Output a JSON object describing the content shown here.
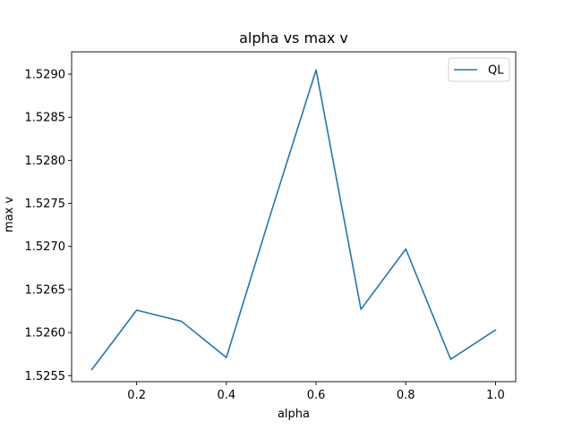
{
  "chart_data": {
    "type": "line",
    "title": "alpha vs max v",
    "xlabel": "alpha",
    "ylabel": "max v",
    "xlim": [
      0.055,
      1.045
    ],
    "ylim": [
      1.52543,
      1.52926
    ],
    "xticks": [
      0.2,
      0.4,
      0.6,
      0.8,
      1.0
    ],
    "xtick_labels": [
      "0.2",
      "0.4",
      "0.6",
      "0.8",
      "1.0"
    ],
    "yticks": [
      1.5255,
      1.526,
      1.5265,
      1.527,
      1.5275,
      1.528,
      1.5285,
      1.529
    ],
    "ytick_labels": [
      "1.5255",
      "1.5260",
      "1.5265",
      "1.5270",
      "1.5275",
      "1.5280",
      "1.5285",
      "1.5290"
    ],
    "grid": false,
    "legend_position": "top-right",
    "series": [
      {
        "name": "QL",
        "color": "#1f77b4",
        "x": [
          0.1,
          0.2,
          0.3,
          0.4,
          0.5,
          0.6,
          0.7,
          0.8,
          0.9,
          1.0
        ],
        "y": [
          1.52557,
          1.52626,
          1.52613,
          1.52571,
          1.5274,
          1.52905,
          1.52627,
          1.52697,
          1.52569,
          1.52603
        ]
      }
    ]
  }
}
